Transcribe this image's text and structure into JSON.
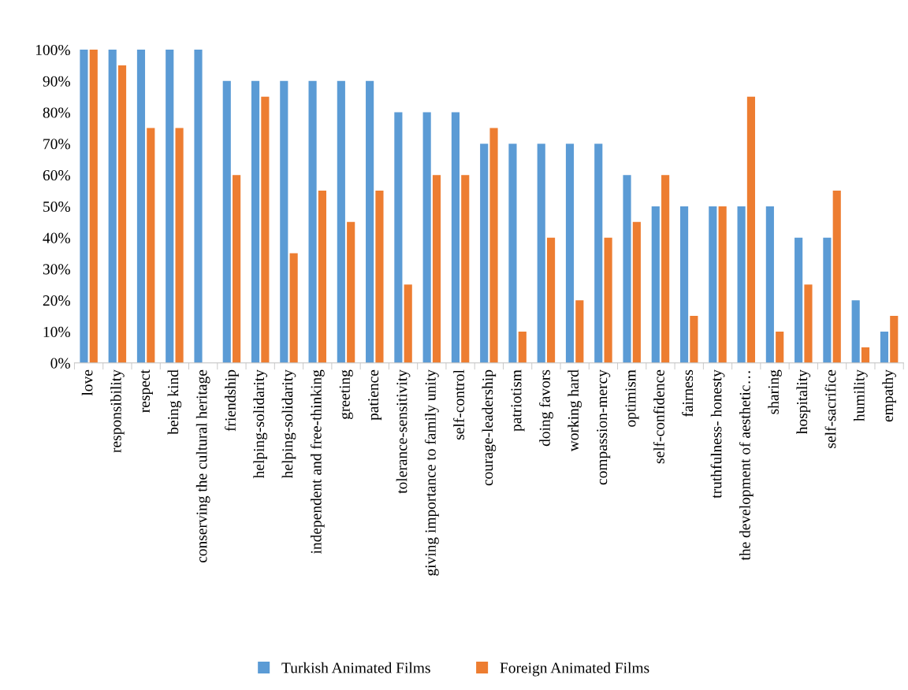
{
  "chart_data": {
    "type": "bar",
    "categories": [
      "love",
      "responsibility",
      "respect",
      "being kind",
      "conserving the cultural heritage",
      "friendship",
      "helping-solidarity",
      "helping-solidarity",
      "independent and free-thinking",
      "greeting",
      "patience",
      "tolerance-sensitivity",
      "giving importance to family unity",
      "self-control",
      "courage-leadership",
      "patriotism",
      "doing favors",
      "working hard",
      "compassion-mercy",
      "optimism",
      "self-confidence",
      "fairness",
      "truthfulness- honesty",
      "the development of aesthetic…",
      "sharing",
      "hospitality",
      "self-sacrifice",
      "humility",
      "empathy"
    ],
    "series": [
      {
        "name": "Turkish Animated Films",
        "color": "#5b9bd5",
        "values": [
          100,
          100,
          100,
          100,
          100,
          90,
          90,
          90,
          90,
          90,
          90,
          80,
          80,
          80,
          70,
          70,
          70,
          70,
          70,
          60,
          50,
          50,
          50,
          50,
          50,
          40,
          40,
          20,
          10
        ]
      },
      {
        "name": "Foreign Animated Films",
        "color": "#ed7d31",
        "values": [
          100,
          95,
          75,
          75,
          0,
          60,
          85,
          35,
          55,
          45,
          55,
          25,
          60,
          60,
          75,
          10,
          40,
          20,
          40,
          45,
          60,
          15,
          50,
          85,
          10,
          25,
          55,
          5,
          15
        ]
      }
    ],
    "ylim": [
      0,
      100
    ],
    "yticks": [
      {
        "value": 0,
        "label": "0%"
      },
      {
        "value": 10,
        "label": "10%"
      },
      {
        "value": 20,
        "label": "20%"
      },
      {
        "value": 30,
        "label": "30%"
      },
      {
        "value": 40,
        "label": "40%"
      },
      {
        "value": 50,
        "label": "50%"
      },
      {
        "value": 60,
        "label": "60%"
      },
      {
        "value": 70,
        "label": "70%"
      },
      {
        "value": 80,
        "label": "80%"
      },
      {
        "value": 90,
        "label": "90%"
      },
      {
        "value": 100,
        "label": "100%"
      }
    ],
    "grid": false,
    "legend": "bottom"
  }
}
